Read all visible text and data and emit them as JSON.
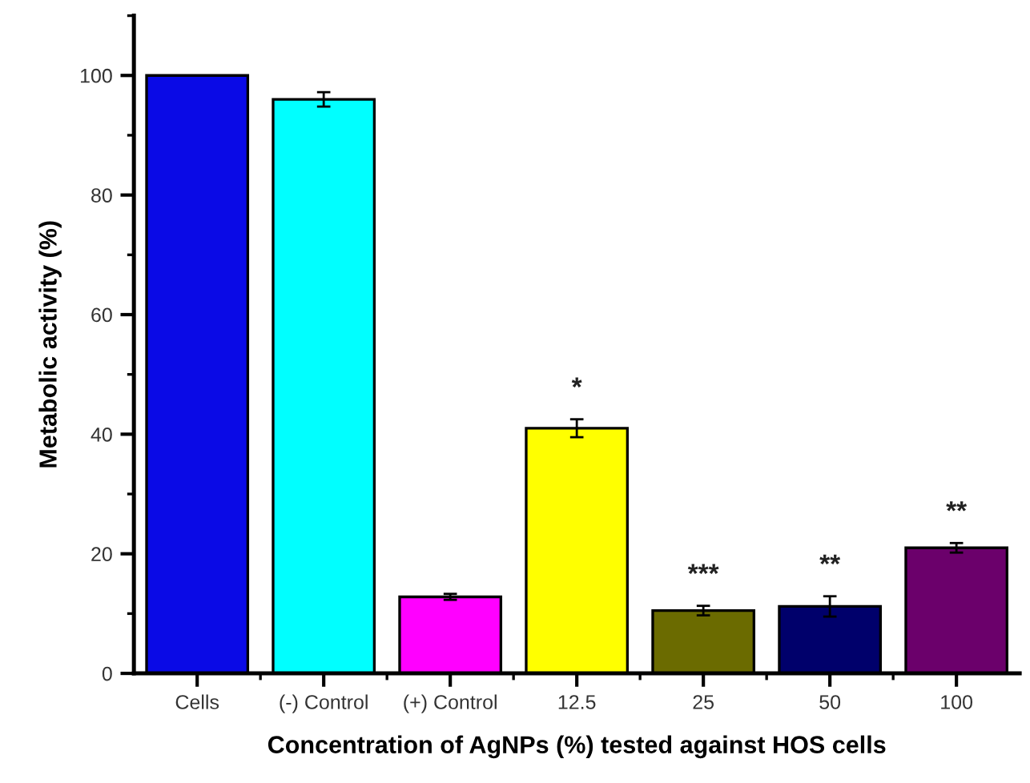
{
  "chart_data": {
    "type": "bar",
    "xlabel": "Concentration of AgNPs (%) tested against HOS cells",
    "ylabel": "Metabolic activity (%)",
    "categories": [
      "Cells",
      "(-) Control",
      "(+) Control",
      "12.5",
      "25",
      "50",
      "100"
    ],
    "values": [
      100,
      96,
      12.8,
      41,
      10.5,
      11.2,
      21
    ],
    "colors": [
      "#0a0ae6",
      "#00ffff",
      "#ff00ff",
      "#ffff00",
      "#6b6b00",
      "#00006b",
      "#6b006b"
    ],
    "errors": [
      null,
      1.2,
      0.5,
      1.5,
      0.8,
      1.7,
      0.8
    ],
    "ylim": [
      0,
      110
    ],
    "yticks": [
      0,
      20,
      40,
      60,
      80,
      100
    ],
    "grid": false,
    "legend": false,
    "annotations": [
      "*",
      "***",
      "**",
      "**"
    ]
  }
}
